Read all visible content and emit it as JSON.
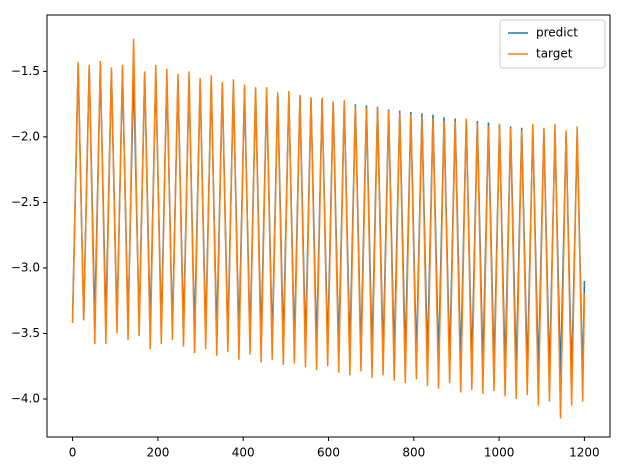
{
  "chart_data": {
    "type": "line",
    "x": [
      0,
      13,
      26,
      39,
      52,
      65,
      78,
      91,
      104,
      117,
      130,
      143,
      156,
      169,
      182,
      195,
      208,
      221,
      234,
      247,
      260,
      273,
      286,
      299,
      312,
      325,
      338,
      351,
      364,
      377,
      390,
      403,
      416,
      429,
      442,
      455,
      468,
      481,
      494,
      507,
      520,
      533,
      546,
      559,
      572,
      585,
      598,
      611,
      624,
      637,
      650,
      663,
      676,
      689,
      702,
      715,
      728,
      741,
      754,
      767,
      780,
      793,
      806,
      819,
      832,
      845,
      858,
      871,
      884,
      897,
      910,
      923,
      936,
      949,
      962,
      975,
      988,
      1001,
      1014,
      1027,
      1040,
      1053,
      1066,
      1079,
      1092,
      1105,
      1118,
      1131,
      1144,
      1157,
      1170,
      1183,
      1196,
      1200
    ],
    "series": [
      {
        "name": "predict",
        "color": "#1f77b4",
        "values": [
          -3.38,
          -1.45,
          -3.39,
          -1.46,
          -3.4,
          -1.47,
          -3.41,
          -1.49,
          -3.42,
          -1.5,
          -3.43,
          -1.51,
          -3.44,
          -1.52,
          -3.45,
          -1.53,
          -3.46,
          -1.55,
          -3.47,
          -1.56,
          -3.48,
          -1.57,
          -3.49,
          -1.58,
          -3.5,
          -1.59,
          -3.51,
          -1.61,
          -3.52,
          -1.62,
          -3.53,
          -1.63,
          -3.54,
          -1.64,
          -3.55,
          -1.65,
          -3.56,
          -1.67,
          -3.57,
          -1.68,
          -3.58,
          -1.69,
          -3.59,
          -1.7,
          -3.6,
          -1.71,
          -3.61,
          -1.73,
          -3.62,
          -1.74,
          -3.63,
          -1.75,
          -3.64,
          -1.76,
          -3.65,
          -1.77,
          -3.66,
          -1.79,
          -3.67,
          -1.8,
          -3.68,
          -1.81,
          -3.69,
          -1.82,
          -3.7,
          -1.83,
          -3.71,
          -1.85,
          -3.72,
          -1.86,
          -3.73,
          -1.87,
          -3.74,
          -1.88,
          -3.75,
          -1.89,
          -3.76,
          -1.91,
          -3.77,
          -1.92,
          -3.78,
          -1.93,
          -3.79,
          -1.94,
          -3.8,
          -1.95,
          -3.81,
          -1.97,
          -3.82,
          -1.98,
          -3.83,
          -1.99,
          -3.84,
          -3.1
        ]
      },
      {
        "name": "target",
        "color": "#ff7f0e",
        "values": [
          -3.42,
          -1.43,
          -3.4,
          -1.45,
          -3.58,
          -1.42,
          -3.58,
          -1.47,
          -3.5,
          -1.45,
          -3.55,
          -1.25,
          -3.52,
          -1.5,
          -3.62,
          -1.45,
          -3.58,
          -1.48,
          -3.55,
          -1.52,
          -3.6,
          -1.5,
          -3.65,
          -1.55,
          -3.62,
          -1.53,
          -3.67,
          -1.58,
          -3.64,
          -1.56,
          -3.7,
          -1.6,
          -3.66,
          -1.62,
          -3.72,
          -1.62,
          -3.7,
          -1.66,
          -3.74,
          -1.65,
          -3.73,
          -1.68,
          -3.76,
          -1.7,
          -3.78,
          -1.7,
          -3.75,
          -1.73,
          -3.8,
          -1.72,
          -3.82,
          -1.76,
          -3.79,
          -1.78,
          -3.84,
          -1.77,
          -3.82,
          -1.8,
          -3.86,
          -1.82,
          -3.88,
          -1.83,
          -3.85,
          -1.85,
          -3.9,
          -1.86,
          -3.92,
          -1.88,
          -3.88,
          -1.88,
          -3.95,
          -1.86,
          -3.93,
          -1.9,
          -3.96,
          -1.92,
          -3.94,
          -1.9,
          -3.98,
          -1.93,
          -4.0,
          -1.95,
          -3.97,
          -1.9,
          -4.05,
          -1.93,
          -4.02,
          -1.9,
          -4.15,
          -1.95,
          -4.05,
          -1.92,
          -4.02,
          -3.2
        ]
      }
    ],
    "xlim": [
      -60,
      1260
    ],
    "ylim": [
      -4.29,
      -1.07
    ],
    "xticks": [
      0,
      200,
      400,
      600,
      800,
      1000,
      1200
    ],
    "yticks": [
      {
        "value": -4.0,
        "label": "−4.0"
      },
      {
        "value": -3.5,
        "label": "−3.5"
      },
      {
        "value": -3.0,
        "label": "−3.0"
      },
      {
        "value": -2.5,
        "label": "−2.5"
      },
      {
        "value": -2.0,
        "label": "−2.0"
      },
      {
        "value": -1.5,
        "label": "−1.5"
      }
    ],
    "legend": "upper right"
  }
}
